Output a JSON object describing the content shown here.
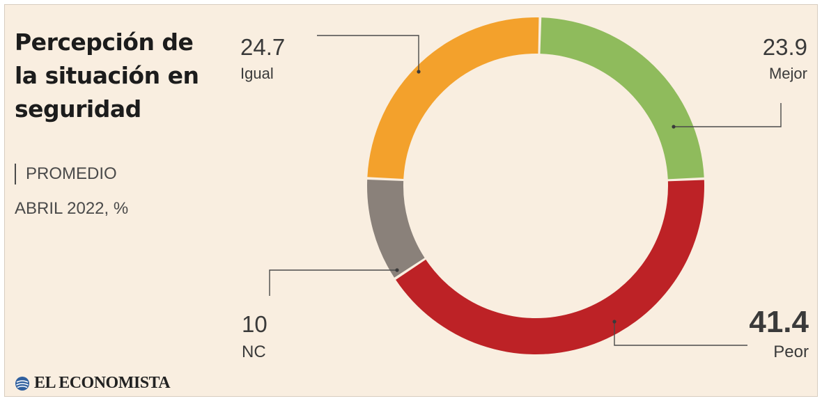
{
  "header": {
    "title": "Percepción de la situación en seguridad",
    "subtitle": "PROMEDIO",
    "date": "ABRIL 2022, %"
  },
  "brand": {
    "name": "EL ECONOMISTA",
    "logo_icon": "globe-icon"
  },
  "chart_data": {
    "type": "pie",
    "variant": "donut",
    "slices": [
      {
        "label": "Mejor",
        "value": 23.9,
        "value_label": "23.9",
        "color": "#8fbb5c"
      },
      {
        "label": "Peor",
        "value": 41.4,
        "value_label": "41.4",
        "color": "#bd2226",
        "emphasis": true
      },
      {
        "label": "NC",
        "value": 10,
        "value_label": "10",
        "color": "#8a817a"
      },
      {
        "label": "Igual",
        "value": 24.7,
        "value_label": "24.7",
        "color": "#f3a12c"
      }
    ],
    "legend": "none",
    "annotations": "leader lines to value/label pairs"
  }
}
